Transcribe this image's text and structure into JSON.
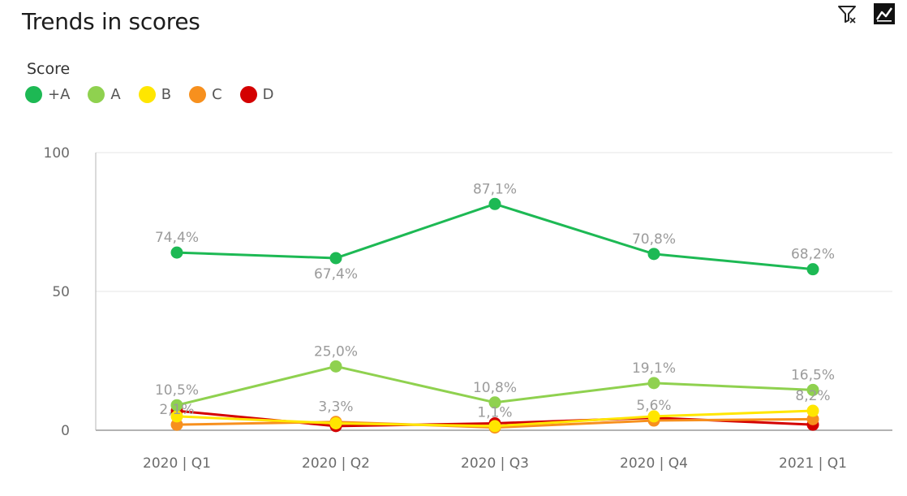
{
  "title": "Trends in scores",
  "icons": {
    "filter": "filter-icon",
    "chart": "line-chart-icon"
  },
  "chart_data": {
    "type": "line",
    "legend_title": "Score",
    "legend_position": "top-left",
    "grid": true,
    "categories": [
      "2020 | Q1",
      "2020 | Q2",
      "2020 | Q3",
      "2020 | Q4",
      "2021 | Q1"
    ],
    "ylim": [
      0,
      100
    ],
    "yticks": [
      0,
      50,
      100
    ],
    "series": [
      {
        "name": "+A",
        "color": "#1db954",
        "values": [
          64,
          62,
          81.5,
          63.5,
          58
        ],
        "labels": [
          "74,4%",
          "67,4%",
          "87,1%",
          "70,8%",
          "68,2%"
        ],
        "label_pos": [
          "above",
          "below",
          "above",
          "above",
          "above"
        ]
      },
      {
        "name": "A",
        "color": "#8fd14f",
        "values": [
          9,
          23,
          10,
          17,
          14.5
        ],
        "labels": [
          "10,5%",
          "25,0%",
          "10,8%",
          "19,1%",
          "16,5%"
        ],
        "label_pos": [
          "above",
          "above",
          "above",
          "above",
          "above"
        ]
      },
      {
        "name": "B",
        "color": "#ffe600",
        "values": [
          5,
          2.5,
          1.5,
          5,
          7
        ],
        "labels": [
          "",
          "",
          "",
          "",
          "8,2%"
        ],
        "label_pos": [
          "",
          "",
          "",
          "",
          "above"
        ]
      },
      {
        "name": "C",
        "color": "#f7901e",
        "values": [
          2,
          3,
          1,
          3.5,
          4
        ],
        "labels": [
          "2,1%",
          "3,3%",
          "1,1%",
          "5,6%",
          ""
        ],
        "label_pos": [
          "above",
          "above",
          "above",
          "above",
          ""
        ]
      },
      {
        "name": "D",
        "color": "#d40000",
        "values": [
          7,
          1.5,
          2.5,
          4.5,
          2
        ],
        "labels": [
          "",
          "",
          "",
          "",
          ""
        ],
        "label_pos": [
          "",
          "",
          "",
          "",
          ""
        ]
      }
    ]
  }
}
